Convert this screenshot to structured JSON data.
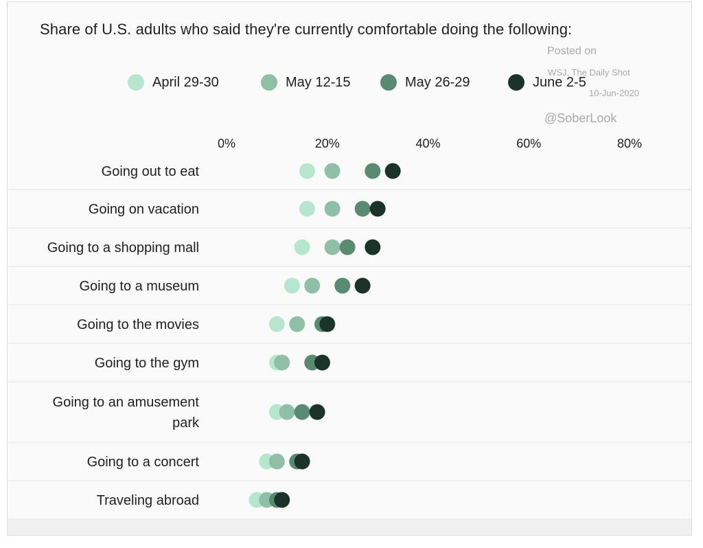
{
  "watermark": {
    "posted_on": "Posted on",
    "source": "WSJ, The Daily Shot",
    "date": "10-Jun-2020",
    "handle": "@SoberLook"
  },
  "colors": {
    "series": [
      "#b7e6cf",
      "#8fbfa6",
      "#5a8a72",
      "#1c3329"
    ],
    "grid": "#e4e4e4",
    "row_band": "#f0f0f0"
  },
  "chart_data": {
    "type": "dot",
    "title": "Share of U.S. adults who said they're currently comfortable doing the following:",
    "xlim": [
      0,
      80
    ],
    "x_ticks": [
      0,
      20,
      40,
      60,
      80
    ],
    "x_tick_labels": [
      "0%",
      "20%",
      "40%",
      "60%",
      "80%"
    ],
    "legend_position": "top",
    "categories": [
      [
        "Going out to eat"
      ],
      [
        "Going on vacation"
      ],
      [
        "Going to a shopping mall"
      ],
      [
        "Going to a museum"
      ],
      [
        "Going to the movies"
      ],
      [
        "Going to the gym"
      ],
      [
        "Going to an amusement",
        "park"
      ],
      [
        "Going to a concert"
      ],
      [
        "Traveling abroad"
      ]
    ],
    "series": [
      {
        "name": "April 29-30",
        "values": [
          16,
          16,
          15,
          13,
          10,
          10,
          10,
          8,
          6
        ]
      },
      {
        "name": "May 12-15",
        "values": [
          21,
          21,
          21,
          17,
          14,
          11,
          12,
          10,
          8
        ]
      },
      {
        "name": "May 26-29",
        "values": [
          29,
          27,
          24,
          23,
          19,
          17,
          15,
          14,
          10
        ]
      },
      {
        "name": "June 2-5",
        "values": [
          33,
          30,
          29,
          27,
          20,
          19,
          18,
          15,
          11
        ]
      }
    ]
  }
}
